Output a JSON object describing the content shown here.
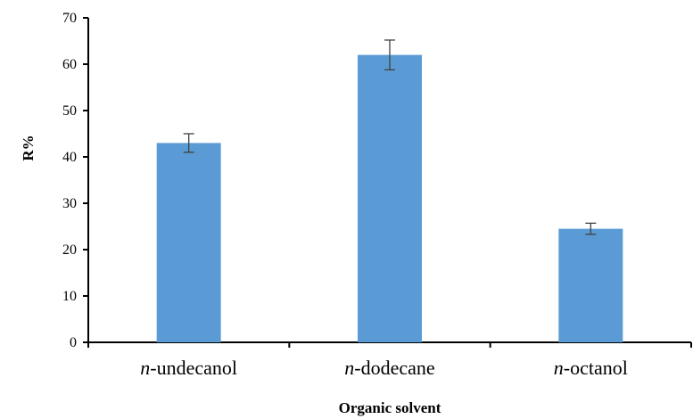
{
  "chart_data": {
    "type": "bar",
    "categories": [
      {
        "prefix": "n",
        "suffix": "-undecanol"
      },
      {
        "prefix": "n",
        "suffix": "-dodecane"
      },
      {
        "prefix": "n",
        "suffix": "-octanol"
      }
    ],
    "values": [
      43.0,
      62.0,
      24.5
    ],
    "errors": [
      2.0,
      3.2,
      1.2
    ],
    "xlabel": "Organic solvent",
    "ylabel": "R%",
    "ylim": [
      0,
      70
    ],
    "yticks": [
      0,
      10,
      20,
      30,
      40,
      50,
      60,
      70
    ],
    "grid": false,
    "legend": "none",
    "bar_color": "#5b9bd5"
  }
}
